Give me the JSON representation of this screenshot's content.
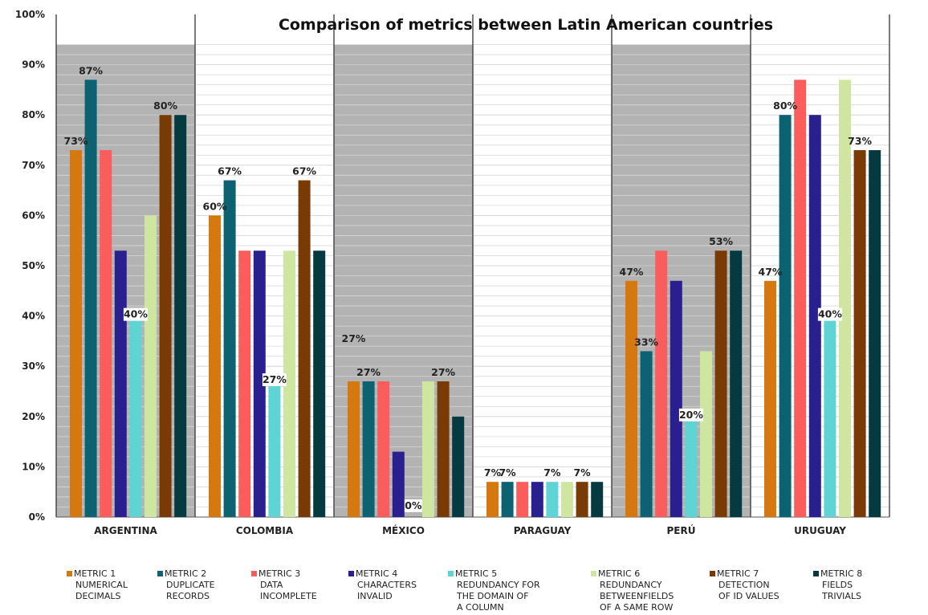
{
  "chart_data": {
    "type": "bar",
    "title": "Comparison of metrics between Latin American countries",
    "xlabel": "",
    "ylabel": "",
    "ylim": [
      0,
      100
    ],
    "y_ticks": [
      "0%",
      "10%",
      "20%",
      "30%",
      "40%",
      "50%",
      "60%",
      "70%",
      "80%",
      "90%",
      "100%"
    ],
    "grid": true,
    "legend_position": "bottom",
    "categories": [
      "ARGENTINA",
      "COLOMBIA",
      "MÉXICO",
      "PARAGUAY",
      "PERÚ",
      "URUGUAY"
    ],
    "series": [
      {
        "name": "METRIC 1 NUMERICAL DECIMALS",
        "legend_lines": [
          "METRIC 1",
          "NUMERICAL",
          "DECIMALS"
        ],
        "color": "#d4780f",
        "values": [
          73,
          60,
          27,
          7,
          47,
          47
        ]
      },
      {
        "name": "METRIC 2 DUPLICATE RECORDS",
        "legend_lines": [
          "METRIC 2",
          "DUPLICATE",
          "RECORDS"
        ],
        "color": "#0c6270",
        "values": [
          87,
          67,
          27,
          7,
          33,
          80
        ]
      },
      {
        "name": "METRIC 3 DATA INCOMPLETE",
        "legend_lines": [
          "METRIC 3",
          "DATA",
          "INCOMPLETE"
        ],
        "color": "#fb5c5c",
        "values": [
          73,
          53,
          27,
          7,
          53,
          87
        ]
      },
      {
        "name": "METRIC 4 CHARACTERS INVALID",
        "legend_lines": [
          "METRIC 4",
          "CHARACTERS",
          "INVALID"
        ],
        "color": "#2a1f8e",
        "values": [
          53,
          53,
          13,
          7,
          47,
          80
        ]
      },
      {
        "name": "METRIC 5 REDUNDANCY FOR THE DOMAIN OF A COLUMN",
        "legend_lines": [
          "METRIC 5",
          "REDUNDANCY FOR",
          "THE DOMAIN OF",
          "A COLUMN"
        ],
        "color": "#5fd4d4",
        "values": [
          40,
          27,
          0,
          7,
          20,
          40
        ]
      },
      {
        "name": "METRIC 6 REDUNDANCY BETWEENFIELDS OF A SAME ROW",
        "legend_lines": [
          "METRIC 6",
          "REDUNDANCY",
          "BETWEENFIELDS",
          "OF A SAME ROW"
        ],
        "color": "#cfe6a0",
        "values": [
          60,
          53,
          27,
          7,
          33,
          87
        ]
      },
      {
        "name": "METRIC 7 DETECTION OF ID VALUES",
        "legend_lines": [
          "METRIC 7",
          "DETECTION",
          "OF ID VALUES"
        ],
        "color": "#7a3a06",
        "values": [
          80,
          67,
          27,
          7,
          53,
          73
        ]
      },
      {
        "name": "METRIC 8 FIELDS TRIVIALS",
        "legend_lines": [
          "METRIC 8",
          "FIELDS",
          "TRIVIALS"
        ],
        "color": "#053a40",
        "values": [
          80,
          53,
          20,
          7,
          53,
          73
        ]
      }
    ],
    "data_labels": [
      {
        "category": 0,
        "series": 0,
        "text": "73%"
      },
      {
        "category": 0,
        "series": 1,
        "text": "87%"
      },
      {
        "category": 0,
        "series": 4,
        "text": "40%",
        "boxed": true
      },
      {
        "category": 0,
        "series": 6,
        "text": "80%"
      },
      {
        "category": 1,
        "series": 0,
        "text": "60%"
      },
      {
        "category": 1,
        "series": 1,
        "text": "67%"
      },
      {
        "category": 1,
        "series": 4,
        "text": "27%",
        "boxed": true
      },
      {
        "category": 1,
        "series": 6,
        "text": "67%"
      },
      {
        "category": 2,
        "series": 0,
        "text": "27%",
        "raised": true
      },
      {
        "category": 2,
        "series": 1,
        "text": "27%"
      },
      {
        "category": 2,
        "series": 4,
        "text": "0%",
        "boxed": true
      },
      {
        "category": 2,
        "series": 6,
        "text": "27%"
      },
      {
        "category": 3,
        "series": 0,
        "text": "7%"
      },
      {
        "category": 3,
        "series": 1,
        "text": "7%"
      },
      {
        "category": 3,
        "series": 4,
        "text": "7%"
      },
      {
        "category": 3,
        "series": 6,
        "text": "7%"
      },
      {
        "category": 4,
        "series": 0,
        "text": "47%"
      },
      {
        "category": 4,
        "series": 1,
        "text": "33%"
      },
      {
        "category": 4,
        "series": 4,
        "text": "20%",
        "boxed": true
      },
      {
        "category": 4,
        "series": 6,
        "text": "53%"
      },
      {
        "category": 5,
        "series": 0,
        "text": "47%"
      },
      {
        "category": 5,
        "series": 1,
        "text": "80%"
      },
      {
        "category": 5,
        "series": 4,
        "text": "40%",
        "boxed": true
      },
      {
        "category": 5,
        "series": 6,
        "text": "73%"
      }
    ],
    "shaded_categories": [
      0,
      2,
      4
    ],
    "colors": {
      "shade": "#b3b3b3",
      "grid": "#d8d8d8",
      "separator": "#333333"
    }
  }
}
